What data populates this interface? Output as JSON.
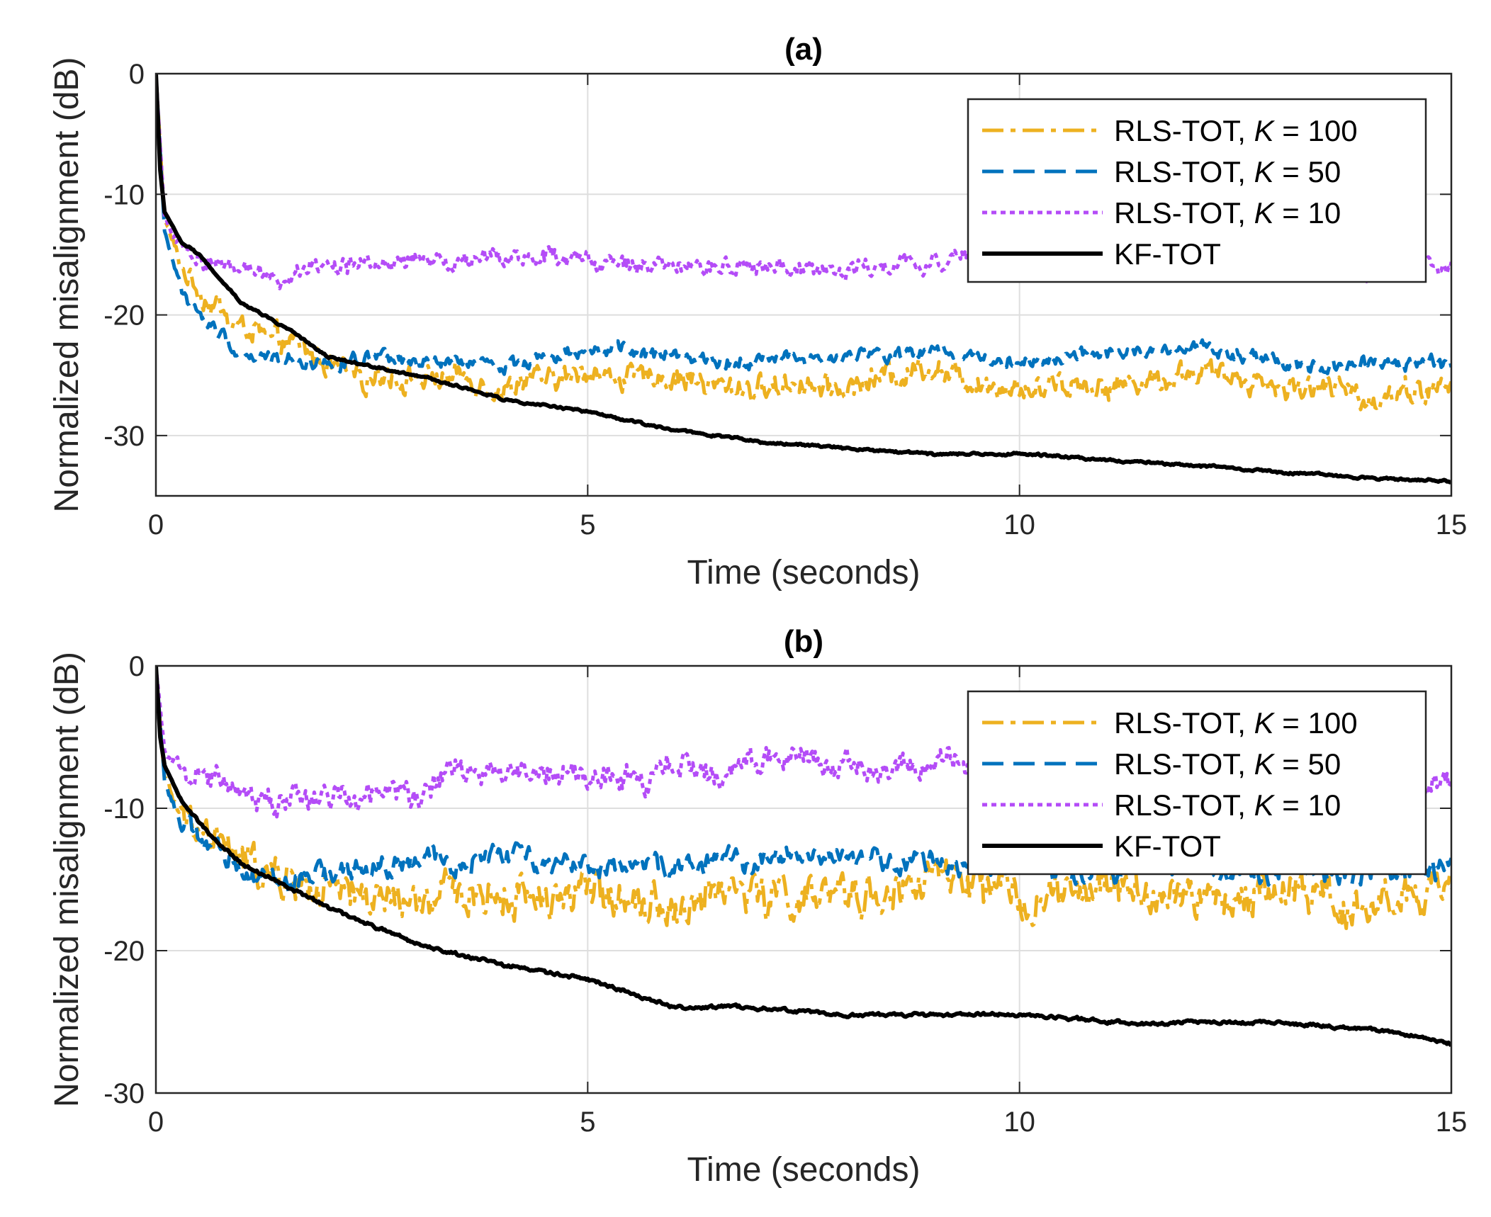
{
  "colors": {
    "rls100": "#EDB120",
    "rls50": "#0072BD",
    "rls10": "#B44CF7",
    "kf": "#000000",
    "grid": "#DEDEDE",
    "axis": "#262626"
  },
  "chart_data": [
    {
      "type": "line",
      "title": "(a)",
      "xlabel": "Time (seconds)",
      "ylabel": "Normalized misalignment (dB)",
      "xlim": [
        0,
        15
      ],
      "ylim": [
        -35,
        0
      ],
      "xticks": [
        0,
        5,
        10,
        15
      ],
      "xtick_labels": [
        "0",
        "5",
        "10",
        "15"
      ],
      "yticks": [
        0,
        -10,
        -20,
        -30
      ],
      "ytick_labels": [
        "0",
        "-10",
        "-20",
        "-30"
      ],
      "grid": true,
      "legend_position": "top-right",
      "legend": [
        {
          "prefix": "RLS-TOT, ",
          "var": "K",
          "suffix": " = 100"
        },
        {
          "prefix": "RLS-TOT, ",
          "var": "K",
          "suffix": " = 50"
        },
        {
          "prefix": "RLS-TOT, ",
          "var": "K",
          "suffix": " = 10"
        },
        {
          "prefix": "KF-TOT",
          "var": "",
          "suffix": ""
        }
      ],
      "series": [
        {
          "name": "RLS-TOT, K = 100",
          "color_key": "rls100",
          "dash": "dashdot",
          "noise": 1.6,
          "x": [
            0,
            0.1,
            0.3,
            0.6,
            1,
            1.5,
            2,
            3,
            4,
            5,
            6,
            7,
            8,
            9,
            10,
            11,
            12,
            13,
            14,
            15
          ],
          "y": [
            0,
            -12,
            -16,
            -19,
            -21,
            -22.5,
            -24,
            -25,
            -26.5,
            -25,
            -25.5,
            -26,
            -25.5,
            -24,
            -26,
            -25.5,
            -25,
            -26,
            -26.5,
            -26
          ]
        },
        {
          "name": "RLS-TOT, K = 50",
          "color_key": "rls50",
          "dash": "dashed",
          "noise": 0.9,
          "x": [
            0,
            0.1,
            0.3,
            0.6,
            1,
            1.5,
            2,
            3,
            4,
            5,
            6,
            7,
            8,
            9,
            10,
            11,
            12,
            13,
            14,
            15
          ],
          "y": [
            0,
            -13,
            -18,
            -21,
            -23,
            -23.5,
            -24,
            -24,
            -24,
            -23,
            -23.5,
            -23.5,
            -23.5,
            -23,
            -24,
            -23.5,
            -23,
            -24,
            -24,
            -24
          ]
        },
        {
          "name": "RLS-TOT, K = 10",
          "color_key": "rls10",
          "dash": "dotted",
          "noise": 1.2,
          "x": [
            0,
            0.1,
            0.3,
            0.6,
            1,
            1.5,
            2,
            3,
            4,
            5,
            6,
            7,
            8,
            9,
            10,
            11,
            12,
            13,
            14,
            15
          ],
          "y": [
            0,
            -12,
            -14.5,
            -15.5,
            -16,
            -16.5,
            -16,
            -15.5,
            -15.5,
            -15.5,
            -16,
            -16,
            -16.5,
            -15.5,
            -15,
            -16,
            -16,
            -16,
            -17,
            -16
          ]
        },
        {
          "name": "KF-TOT",
          "color_key": "kf",
          "dash": "solid",
          "noise": 0.15,
          "x": [
            0,
            0.05,
            0.1,
            0.3,
            0.5,
            1,
            1.5,
            2,
            3,
            4,
            5,
            6,
            7,
            8,
            9,
            10,
            11,
            12,
            13,
            14,
            15
          ],
          "y": [
            0,
            -8,
            -11.5,
            -14,
            -15,
            -19,
            -21,
            -23.5,
            -25,
            -27,
            -28,
            -29.5,
            -30.5,
            -31,
            -31.5,
            -31.5,
            -32,
            -32.5,
            -33,
            -33.5,
            -33.8
          ]
        }
      ]
    },
    {
      "type": "line",
      "title": "(b)",
      "xlabel": "Time (seconds)",
      "ylabel": "Normalized misalignment (dB)",
      "xlim": [
        0,
        15
      ],
      "ylim": [
        -30,
        0
      ],
      "xticks": [
        0,
        5,
        10,
        15
      ],
      "xtick_labels": [
        "0",
        "5",
        "10",
        "15"
      ],
      "yticks": [
        0,
        -10,
        -20,
        -30
      ],
      "ytick_labels": [
        "0",
        "-10",
        "-20",
        "-30"
      ],
      "grid": true,
      "legend_position": "top-right",
      "legend": [
        {
          "prefix": "RLS-TOT, ",
          "var": "K",
          "suffix": " = 100"
        },
        {
          "prefix": "RLS-TOT, ",
          "var": "K",
          "suffix": " = 50"
        },
        {
          "prefix": "RLS-TOT, ",
          "var": "K",
          "suffix": " = 10"
        },
        {
          "prefix": "KF-TOT",
          "var": "",
          "suffix": ""
        }
      ],
      "series": [
        {
          "name": "RLS-TOT, K = 100",
          "color_key": "rls100",
          "dash": "dashdot",
          "noise": 2.2,
          "x": [
            0,
            0.1,
            0.3,
            0.6,
            1,
            1.5,
            2,
            3,
            4,
            5,
            6,
            7,
            8,
            9,
            10,
            11,
            12,
            13,
            14,
            15
          ],
          "y": [
            0,
            -8,
            -11,
            -12.5,
            -14,
            -15.5,
            -16,
            -16,
            -16.5,
            -16,
            -16.5,
            -16,
            -16,
            -15,
            -16,
            -16,
            -16,
            -16,
            -16.5,
            -16
          ]
        },
        {
          "name": "RLS-TOT, K = 50",
          "color_key": "rls50",
          "dash": "dashed",
          "noise": 1.2,
          "x": [
            0,
            0.1,
            0.3,
            0.6,
            1,
            1.5,
            2,
            3,
            4,
            5,
            6,
            7,
            8,
            9,
            10,
            11,
            12,
            13,
            14,
            15
          ],
          "y": [
            0,
            -8,
            -11,
            -12.5,
            -14,
            -14.5,
            -14,
            -14,
            -13.5,
            -13.5,
            -14,
            -13.5,
            -13.5,
            -13.5,
            -14,
            -14,
            -14,
            -14,
            -14.5,
            -14.5
          ]
        },
        {
          "name": "RLS-TOT, K = 10",
          "color_key": "rls10",
          "dash": "dotted",
          "noise": 1.5,
          "x": [
            0,
            0.1,
            0.3,
            0.6,
            1,
            1.5,
            2,
            3,
            4,
            5,
            6,
            7,
            8,
            9,
            10,
            11,
            12,
            13,
            14,
            15
          ],
          "y": [
            0,
            -6,
            -7,
            -7.5,
            -8,
            -9,
            -9,
            -8,
            -7.5,
            -7.5,
            -7.5,
            -7,
            -7,
            -7,
            -7,
            -7.5,
            -7.5,
            -7.5,
            -8,
            -8
          ]
        },
        {
          "name": "KF-TOT",
          "color_key": "kf",
          "dash": "solid",
          "noise": 0.18,
          "x": [
            0,
            0.05,
            0.1,
            0.3,
            0.5,
            1,
            1.5,
            2,
            3,
            4,
            5,
            6,
            7,
            8,
            9,
            10,
            11,
            12,
            13,
            14,
            15
          ],
          "y": [
            0,
            -5,
            -7,
            -9.5,
            -11,
            -14,
            -15.5,
            -17,
            -19.5,
            -21,
            -22,
            -24,
            -24,
            -24.5,
            -24.5,
            -24.5,
            -25,
            -25,
            -25,
            -25.5,
            -26.5
          ]
        }
      ]
    }
  ]
}
